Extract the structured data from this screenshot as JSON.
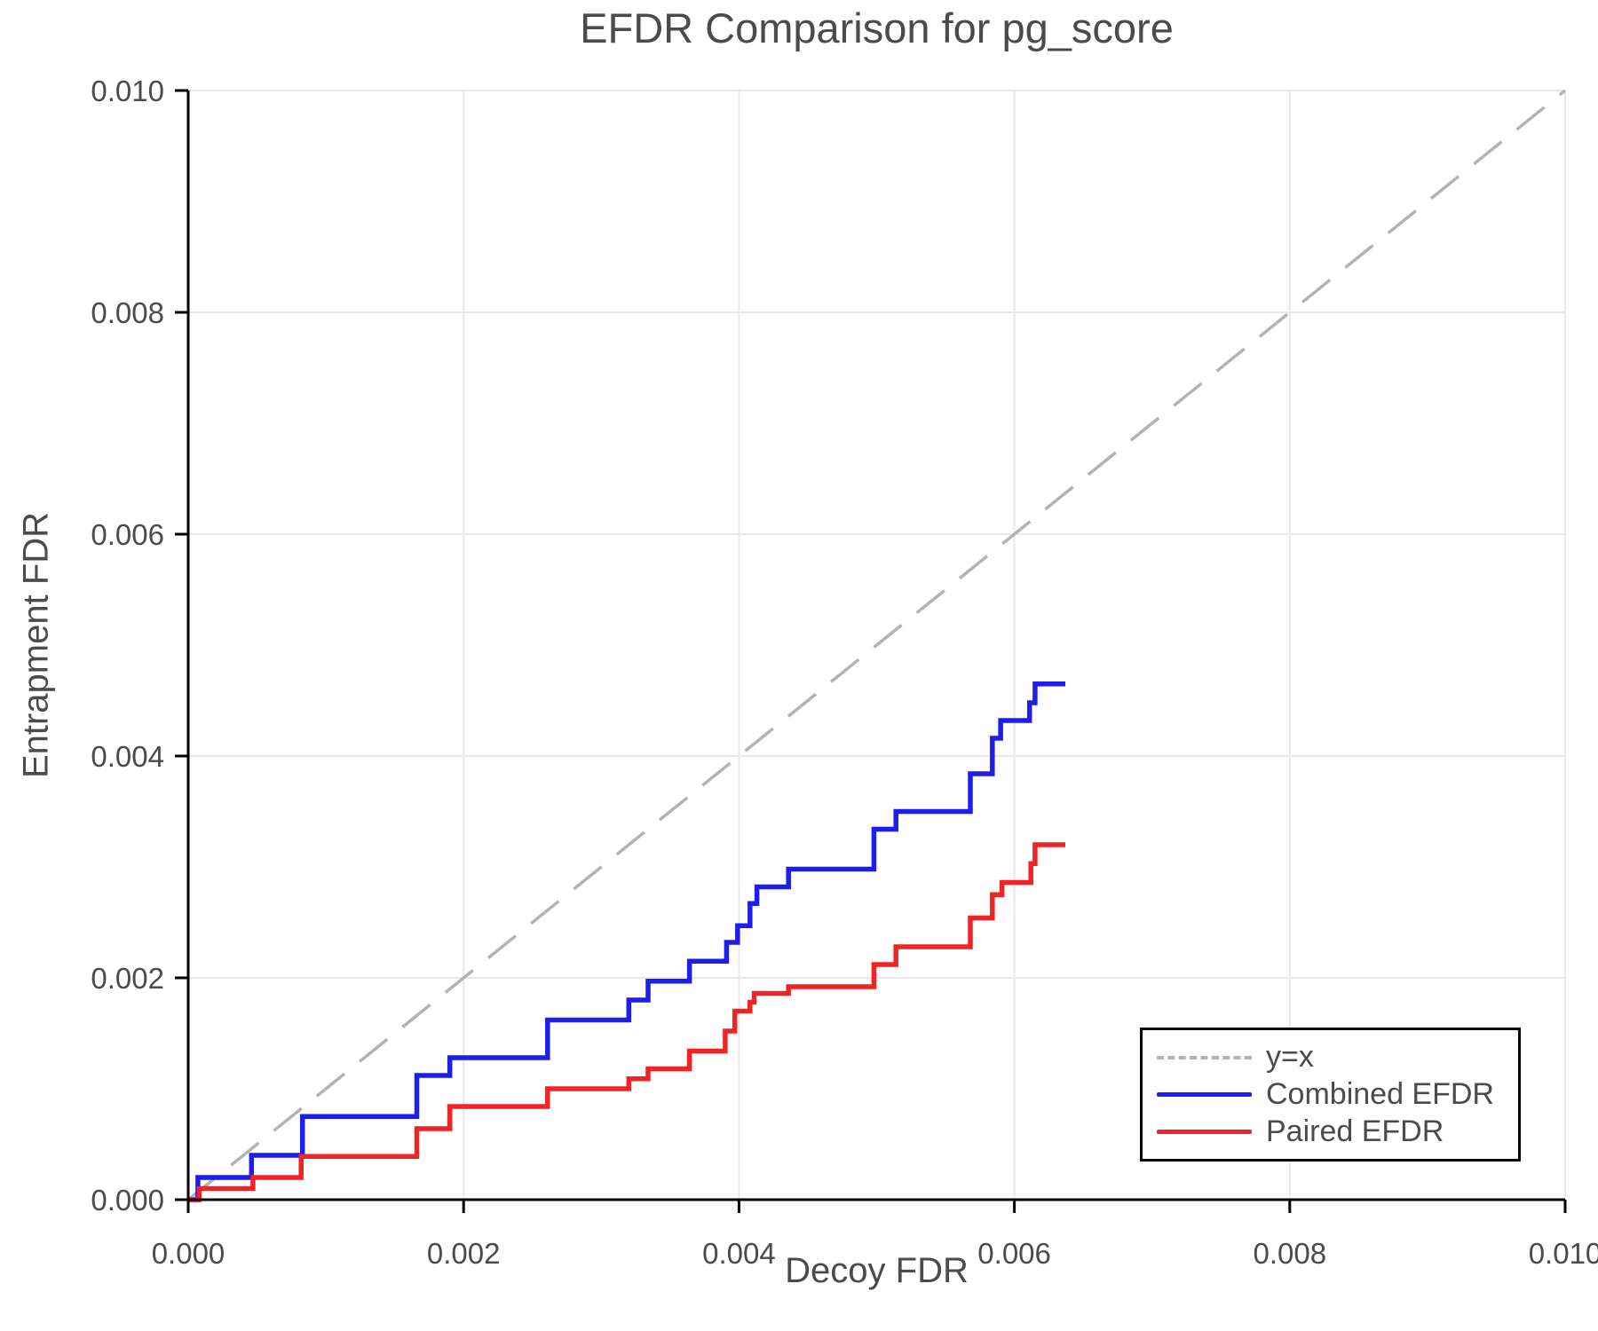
{
  "figure": {
    "title": "EFDR Comparison for pg_score",
    "xlabel": "Decoy FDR",
    "ylabel": "Entrapment FDR"
  },
  "colors": {
    "identity_line": "#b3b3b3",
    "combined_line": "#1d1dee",
    "paired_line": "#f02424",
    "gridline": "#e9e9e9",
    "spine": "#000000",
    "text": "#4b4b4b",
    "background": "#ffffff"
  },
  "chart_data": {
    "type": "line",
    "title": "EFDR Comparison for pg_score",
    "xlabel": "Decoy FDR",
    "ylabel": "Entrapment FDR",
    "xlim": [
      0.0,
      0.01
    ],
    "ylim": [
      0.0,
      0.01
    ],
    "x_ticks": [
      0.0,
      0.002,
      0.004,
      0.006,
      0.008,
      0.01
    ],
    "y_ticks": [
      0.0,
      0.002,
      0.004,
      0.006,
      0.008,
      0.01
    ],
    "x_tick_labels": [
      "0.000",
      "0.002",
      "0.004",
      "0.006",
      "0.008",
      "0.010"
    ],
    "y_tick_labels": [
      "0.000",
      "0.002",
      "0.004",
      "0.006",
      "0.008",
      "0.010"
    ],
    "grid": true,
    "legend_position": "lower right",
    "series": [
      {
        "id": "identity",
        "name": "y=x",
        "style": "dashed",
        "draw": "line",
        "color": "#b3b3b3",
        "points": [
          [
            0.0,
            0.0
          ],
          [
            0.01,
            0.01
          ]
        ]
      },
      {
        "id": "combined-efdr",
        "name": "Combined EFDR",
        "style": "solid",
        "draw": "step",
        "color": "#1d1dee",
        "points": [
          [
            0.0,
            0.0
          ],
          [
            7e-05,
            0.0002
          ],
          [
            0.00046,
            0.0004
          ],
          [
            0.00083,
            0.00075
          ],
          [
            0.00166,
            0.00112
          ],
          [
            0.0019,
            0.00128
          ],
          [
            0.00261,
            0.00162
          ],
          [
            0.0032,
            0.0018
          ],
          [
            0.00334,
            0.00197
          ],
          [
            0.00364,
            0.00215
          ],
          [
            0.00391,
            0.00232
          ],
          [
            0.00399,
            0.00247
          ],
          [
            0.00408,
            0.00267
          ],
          [
            0.00413,
            0.00282
          ],
          [
            0.00436,
            0.00298
          ],
          [
            0.00498,
            0.00334
          ],
          [
            0.00514,
            0.0035
          ],
          [
            0.00568,
            0.00384
          ],
          [
            0.00584,
            0.00416
          ],
          [
            0.0059,
            0.00432
          ],
          [
            0.00611,
            0.00448
          ],
          [
            0.00615,
            0.00465
          ],
          [
            0.00637,
            0.00465
          ]
        ]
      },
      {
        "id": "paired-efdr",
        "name": "Paired EFDR",
        "style": "solid",
        "draw": "step",
        "color": "#f02424",
        "points": [
          [
            0.0,
            0.0
          ],
          [
            8e-05,
            0.0001
          ],
          [
            0.00047,
            0.0002
          ],
          [
            0.00082,
            0.00039
          ],
          [
            0.00166,
            0.00064
          ],
          [
            0.0019,
            0.00084
          ],
          [
            0.00261,
            0.001
          ],
          [
            0.0032,
            0.00109
          ],
          [
            0.00334,
            0.00118
          ],
          [
            0.00364,
            0.00134
          ],
          [
            0.0039,
            0.00152
          ],
          [
            0.00397,
            0.0017
          ],
          [
            0.00408,
            0.00178
          ],
          [
            0.00411,
            0.00186
          ],
          [
            0.00436,
            0.00192
          ],
          [
            0.00498,
            0.00212
          ],
          [
            0.00514,
            0.00228
          ],
          [
            0.00568,
            0.00254
          ],
          [
            0.00584,
            0.00275
          ],
          [
            0.00591,
            0.00286
          ],
          [
            0.00612,
            0.00303
          ],
          [
            0.00615,
            0.0032
          ],
          [
            0.00637,
            0.0032
          ]
        ]
      }
    ]
  }
}
